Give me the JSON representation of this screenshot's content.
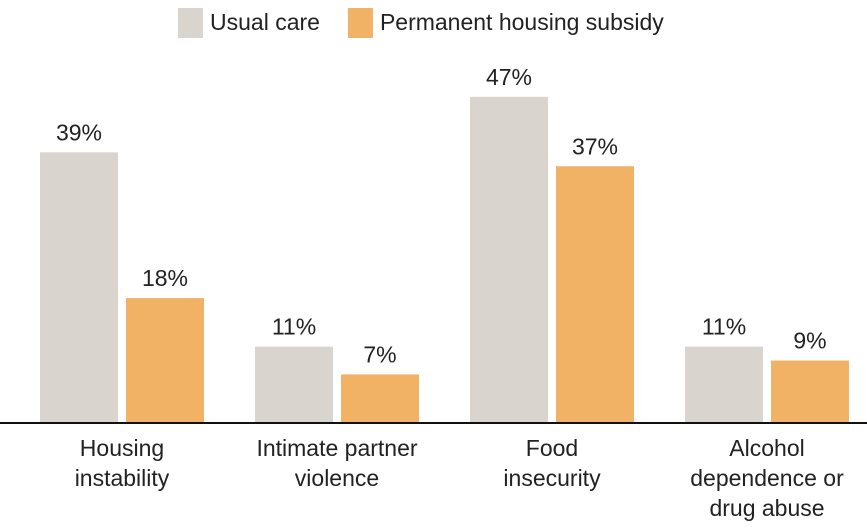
{
  "chart_data": {
    "type": "bar",
    "categories": [
      [
        "Housing",
        "instability"
      ],
      [
        "Intimate partner",
        "violence"
      ],
      [
        "Food",
        "insecurity"
      ],
      [
        "Alcohol",
        "dependence or",
        "drug abuse"
      ]
    ],
    "series": [
      {
        "name": "Usual care",
        "color": "#d9d4ce",
        "values": [
          39,
          11,
          47,
          11
        ],
        "value_labels": [
          "39%",
          "11%",
          "47%",
          "11%"
        ]
      },
      {
        "name": "Permanent housing subsidy",
        "color": "#f2b266",
        "values": [
          18,
          7,
          37,
          9
        ],
        "value_labels": [
          "18%",
          "7%",
          "37%",
          "9%"
        ]
      }
    ],
    "legend": "top"
  }
}
